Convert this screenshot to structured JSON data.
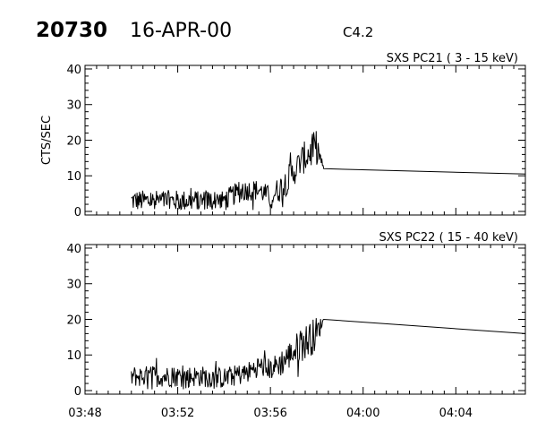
{
  "header": {
    "event_id": "20730",
    "date": "16-APR-00",
    "flare_class": "C4.2"
  },
  "chart_data": [
    {
      "type": "line",
      "title": "SXS PC21  (  3 - 15 keV)",
      "xlabel": "",
      "ylabel": "CTS/SEC",
      "xlim": [
        "03:48",
        "04:07"
      ],
      "ylim": [
        0,
        41
      ],
      "y_ticks": [
        0,
        10,
        20,
        30,
        40
      ],
      "x_ticks": [
        "03:48",
        "03:52",
        "03:56",
        "04:00",
        "04:04"
      ],
      "grid": false,
      "series": [
        {
          "x": [
            "03:50",
            "03:51",
            "03:52",
            "03:53",
            "03:54",
            "03:54.5",
            "03:55",
            "03:55.5",
            "03:56",
            "03:56.5",
            "03:57",
            "03:57.3",
            "03:57.6",
            "03:58",
            "03:58.3",
            "04:07"
          ],
          "y": [
            3,
            3,
            3,
            3,
            3,
            5,
            6,
            6,
            4,
            7,
            11,
            14,
            16,
            18,
            12,
            10.5
          ],
          "noise": [
            3,
            3,
            3,
            3,
            3,
            3,
            3,
            3,
            3,
            4,
            4,
            4,
            5,
            5,
            0,
            0
          ]
        }
      ]
    },
    {
      "type": "line",
      "title": "SXS PC22  ( 15 - 40 keV)",
      "xlabel": "",
      "ylabel": "",
      "xlim": [
        "03:48",
        "04:07"
      ],
      "ylim": [
        0,
        41
      ],
      "y_ticks": [
        0,
        10,
        20,
        30,
        40
      ],
      "x_ticks": [
        "03:48",
        "03:52",
        "03:56",
        "04:00",
        "04:04"
      ],
      "grid": false,
      "series": [
        {
          "x": [
            "03:50",
            "03:51",
            "03:52",
            "03:53",
            "03:54",
            "03:55",
            "03:55.5",
            "03:56",
            "03:56.5",
            "03:57",
            "03:57.3",
            "03:57.6",
            "03:58",
            "03:58.3",
            "04:07"
          ],
          "y": [
            4,
            4,
            4,
            4,
            3.5,
            5,
            7,
            6,
            8,
            11,
            13,
            14,
            16,
            20,
            16
          ],
          "noise": [
            3,
            3,
            3,
            3,
            3,
            3,
            3,
            3,
            4,
            4,
            5,
            5,
            5,
            0,
            0
          ]
        }
      ]
    }
  ]
}
